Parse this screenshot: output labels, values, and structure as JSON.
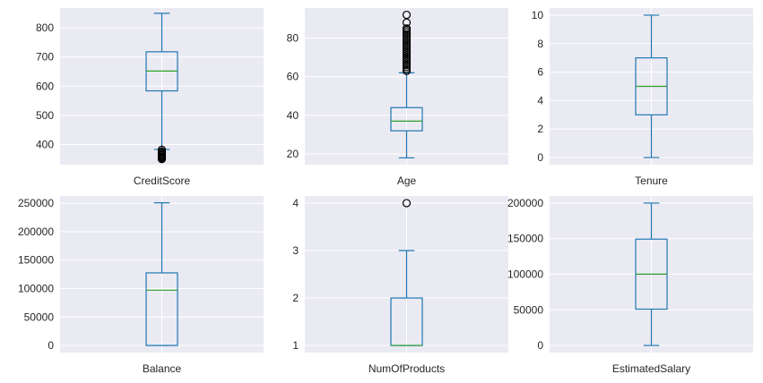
{
  "chart_data": [
    {
      "type": "box",
      "xlabel": "CreditScore",
      "ylim": [
        331,
        868
      ],
      "yticks": [
        400,
        500,
        600,
        700,
        800
      ],
      "tick_labels": [
        "400",
        "500",
        "600",
        "700",
        "800"
      ],
      "box": {
        "whisker_low": 383,
        "q1": 584,
        "median": 652,
        "q3": 718,
        "whisker_high": 850
      },
      "outliers": [
        382,
        376,
        372,
        368,
        365,
        363,
        359,
        357,
        355,
        352,
        350
      ]
    },
    {
      "type": "box",
      "xlabel": "Age",
      "ylim": [
        14.5,
        95.5
      ],
      "yticks": [
        20,
        40,
        60,
        80
      ],
      "tick_labels": [
        "20",
        "40",
        "60",
        "80"
      ],
      "box": {
        "whisker_low": 18,
        "q1": 32,
        "median": 37,
        "q3": 44,
        "whisker_high": 62
      },
      "outliers": [
        63,
        64,
        65,
        66,
        67,
        68,
        69,
        70,
        71,
        72,
        73,
        74,
        75,
        76,
        77,
        78,
        79,
        80,
        81,
        82,
        83,
        84,
        85,
        88,
        92
      ]
    },
    {
      "type": "box",
      "xlabel": "Tenure",
      "ylim": [
        -0.5,
        10.5
      ],
      "yticks": [
        0,
        2,
        4,
        6,
        8,
        10
      ],
      "tick_labels": [
        "0",
        "2",
        "4",
        "6",
        "8",
        "10"
      ],
      "box": {
        "whisker_low": 0,
        "q1": 3,
        "median": 5,
        "q3": 7,
        "whisker_high": 10
      },
      "outliers": []
    },
    {
      "type": "box",
      "xlabel": "Balance",
      "ylim": [
        -12500,
        262900
      ],
      "yticks": [
        0,
        50000,
        100000,
        150000,
        200000,
        250000
      ],
      "tick_labels": [
        "0",
        "50000",
        "100000",
        "150000",
        "200000",
        "250000"
      ],
      "box": {
        "whisker_low": 0,
        "q1": 0,
        "median": 97199,
        "q3": 127644,
        "whisker_high": 250898
      },
      "outliers": []
    },
    {
      "type": "box",
      "xlabel": "NumOfProducts",
      "ylim": [
        0.85,
        4.15
      ],
      "yticks": [
        1,
        2,
        3,
        4
      ],
      "tick_labels": [
        "1",
        "2",
        "3",
        "4"
      ],
      "box": {
        "whisker_low": 1,
        "q1": 1,
        "median": 1,
        "q3": 2,
        "whisker_high": 3
      },
      "outliers": [
        4
      ]
    },
    {
      "type": "box",
      "xlabel": "EstimatedSalary",
      "ylim": [
        -9980,
        209990
      ],
      "yticks": [
        0,
        50000,
        100000,
        150000,
        200000
      ],
      "tick_labels": [
        "0",
        "50000",
        "100000",
        "150000",
        "200000"
      ],
      "box": {
        "whisker_low": 12,
        "q1": 51002,
        "median": 100194,
        "q3": 149388,
        "whisker_high": 199992
      },
      "outliers": []
    }
  ],
  "colors": {
    "box": "#1f77b4",
    "median": "#2ca02c",
    "panel_bg": "#eaeaf2",
    "grid": "#ffffff",
    "text": "#262626"
  }
}
